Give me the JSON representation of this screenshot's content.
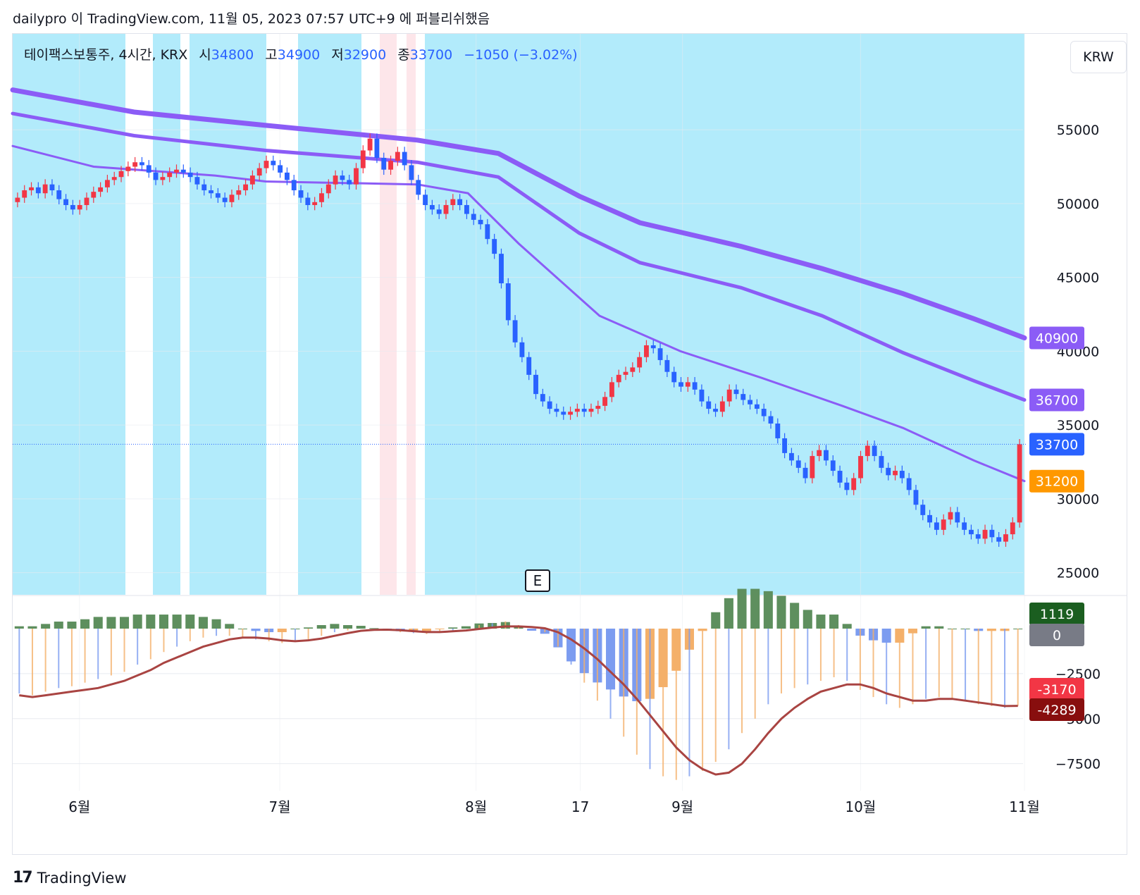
{
  "header": {
    "publish_line": "dailypro 이 TradingView.com, 11월 05, 2023 07:57 UTC+9 에 퍼블리쉬했음"
  },
  "legend": {
    "symbol": "테이팩스보통주, 4시간, KRX",
    "open_label": "시",
    "open": "34800",
    "high_label": "고",
    "high": "34900",
    "low_label": "저",
    "low": "32900",
    "close_label": "종",
    "close": "33700",
    "change": "−1050 (−3.02%)"
  },
  "currency_button": "KRW",
  "earnings_marker": "E",
  "footer": {
    "brand": "TradingView",
    "logo_icon": "tradingview-logo-icon"
  },
  "colors": {
    "background_zone": "#b2ebfb",
    "ma_line": "#8b5cf6",
    "up_candle": "#f23645",
    "down_candle": "#2962ff",
    "hist_pos": "#5e8f5e",
    "hist_neg_orange": "#f4b06a",
    "hist_neg_blue": "#7c9cf0",
    "signal_line": "#a94442"
  },
  "chart_data": [
    {
      "type": "candlestick",
      "title": "테이팩스보통주, 4시간, KRX",
      "y_ticks": [
        25000,
        30000,
        35000,
        40000,
        45000,
        50000,
        55000
      ],
      "ylim": [
        23500,
        61500
      ],
      "x_labels": [
        "6월",
        "7월",
        "8월",
        "17",
        "9월",
        "10월",
        "11월"
      ],
      "x_label_positions": [
        0.066,
        0.264,
        0.458,
        0.561,
        0.662,
        0.838,
        1.0
      ],
      "last_close": 33700,
      "price_labels": [
        {
          "value": 40900,
          "label": "40900",
          "color": "#8b5cf6"
        },
        {
          "value": 36700,
          "label": "36700",
          "color": "#8b5cf6"
        },
        {
          "value": 33700,
          "label": "33700",
          "color": "#2962ff"
        },
        {
          "value": 31200,
          "label": "31200",
          "color": "#ff9800"
        }
      ],
      "closes": [
        50400,
        50900,
        51100,
        50700,
        51300,
        50900,
        50300,
        49900,
        49600,
        49900,
        50400,
        50800,
        51100,
        51600,
        51800,
        52200,
        52500,
        52800,
        52600,
        52100,
        51600,
        51800,
        52100,
        52300,
        52100,
        51800,
        51300,
        50900,
        50700,
        50400,
        50100,
        50600,
        50900,
        51300,
        51900,
        52400,
        52900,
        52600,
        52100,
        51600,
        50900,
        50400,
        49900,
        50100,
        50700,
        51300,
        51900,
        51600,
        51300,
        52400,
        53600,
        54400,
        53100,
        52300,
        52900,
        53500,
        52600,
        51600,
        50600,
        49900,
        49600,
        49300,
        49900,
        50300,
        49900,
        49300,
        48900,
        48600,
        47600,
        46600,
        44600,
        42100,
        40600,
        39600,
        38400,
        37100,
        36600,
        36100,
        35900,
        35700,
        35900,
        36100,
        35900,
        36100,
        36300,
        36900,
        37900,
        38400,
        38600,
        38900,
        39600,
        40400,
        40200,
        39400,
        38600,
        37900,
        37600,
        37900,
        37400,
        36600,
        36100,
        35900,
        36600,
        37400,
        37100,
        36700,
        36400,
        36100,
        35600,
        35100,
        34100,
        33100,
        32600,
        32100,
        31400,
        32900,
        33300,
        32600,
        31900,
        31100,
        30600,
        31400,
        32900,
        33600,
        32900,
        32100,
        31600,
        31900,
        31400,
        30600,
        29600,
        28900,
        28400,
        27900,
        28600,
        29100,
        28400,
        27900,
        27600,
        27300,
        27900,
        27400,
        27100,
        27600,
        28400,
        33700
      ],
      "ma_lines": [
        {
          "name": "",
          "points": [
            [
              0,
              57700
            ],
            [
              0.12,
              56200
            ],
            [
              0.25,
              55300
            ],
            [
              0.4,
              54300
            ],
            [
              0.48,
              53400
            ],
            [
              0.56,
              50500
            ],
            [
              0.62,
              48700
            ],
            [
              0.72,
              47100
            ],
            [
              0.8,
              45600
            ],
            [
              0.88,
              43900
            ],
            [
              0.95,
              42200
            ],
            [
              1.0,
              40900
            ]
          ]
        },
        {
          "name": "",
          "points": [
            [
              0,
              56100
            ],
            [
              0.12,
              54600
            ],
            [
              0.25,
              53600
            ],
            [
              0.4,
              52800
            ],
            [
              0.48,
              51800
            ],
            [
              0.56,
              48000
            ],
            [
              0.62,
              46000
            ],
            [
              0.72,
              44300
            ],
            [
              0.8,
              42400
            ],
            [
              0.88,
              39900
            ],
            [
              0.95,
              38000
            ],
            [
              1.0,
              36700
            ]
          ]
        },
        {
          "name": "",
          "points": [
            [
              0,
              53900
            ],
            [
              0.08,
              52500
            ],
            [
              0.2,
              51900
            ],
            [
              0.25,
              51500
            ],
            [
              0.4,
              51300
            ],
            [
              0.45,
              50700
            ],
            [
              0.5,
              47300
            ],
            [
              0.58,
              42400
            ],
            [
              0.66,
              40000
            ],
            [
              0.74,
              38200
            ],
            [
              0.82,
              36300
            ],
            [
              0.88,
              34800
            ],
            [
              0.95,
              32600
            ],
            [
              1.0,
              31200
            ]
          ]
        }
      ]
    },
    {
      "type": "bar",
      "title": "",
      "y_ticks": [
        -7500,
        -5000,
        -2500
      ],
      "ylim": [
        -9000,
        1800
      ],
      "value_labels": [
        {
          "value": 1119,
          "label": "1119",
          "color": "#1b5e20"
        },
        {
          "value": 0,
          "label": "0",
          "color": "#787b86"
        },
        {
          "value": -3170,
          "label": "-3170",
          "color": "#f23645"
        },
        {
          "value": -4289,
          "label": "-4289",
          "color": "#880e0e"
        }
      ],
      "macd": [
        -3600,
        -3700,
        -3500,
        -3300,
        -3200,
        -3000,
        -2800,
        -2600,
        -2400,
        -2000,
        -1700,
        -1300,
        -1000,
        -700,
        -500,
        -400,
        -400,
        -500,
        -600,
        -700,
        -800,
        -700,
        -600,
        -400,
        -200,
        -100,
        0,
        -50,
        -100,
        -200,
        -250,
        -300,
        -200,
        -100,
        0,
        200,
        300,
        400,
        200,
        0,
        -200,
        -1000,
        -2000,
        -3000,
        -4000,
        -5000,
        -6000,
        -7000,
        -7800,
        -8200,
        -8400,
        -8200,
        -7900,
        -7400,
        -6700,
        -5800,
        -5000,
        -4200,
        -3600,
        -3300,
        -3100,
        -2900,
        -2700,
        -2900,
        -3400,
        -3800,
        -4200,
        -4400,
        -4200,
        -3900,
        -3800,
        -3900,
        -4000,
        -4200,
        -4300,
        -4400,
        -4289
      ],
      "signal": [
        -3700,
        -3800,
        -3700,
        -3600,
        -3500,
        -3400,
        -3300,
        -3100,
        -2900,
        -2600,
        -2300,
        -1900,
        -1600,
        -1300,
        -1000,
        -800,
        -600,
        -500,
        -500,
        -550,
        -650,
        -700,
        -650,
        -550,
        -400,
        -250,
        -120,
        -70,
        -60,
        -90,
        -140,
        -190,
        -190,
        -150,
        -100,
        -20,
        60,
        120,
        120,
        90,
        20,
        -200,
        -600,
        -1100,
        -1700,
        -2400,
        -3100,
        -3900,
        -4800,
        -5700,
        -6600,
        -7300,
        -7800,
        -8100,
        -8000,
        -7500,
        -6700,
        -5800,
        -5000,
        -4400,
        -3900,
        -3500,
        -3300,
        -3100,
        -3100,
        -3300,
        -3600,
        -3800,
        -4000,
        -4000,
        -3900,
        -3900,
        -4000,
        -4100,
        -4200,
        -4300,
        -4289
      ]
    }
  ]
}
